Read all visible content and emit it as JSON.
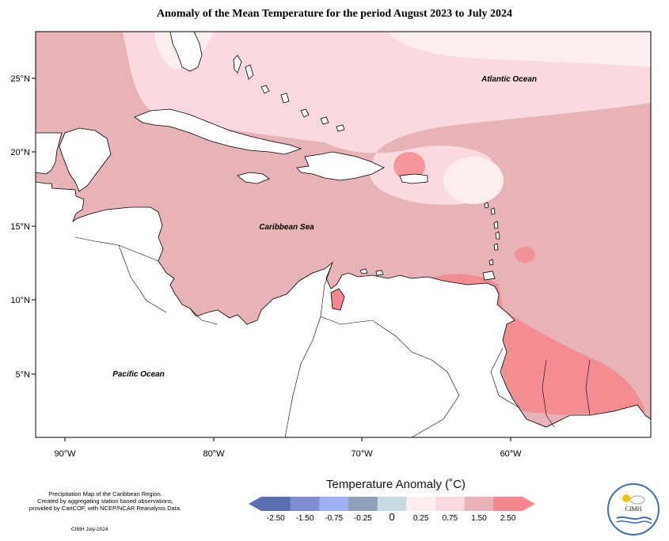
{
  "title": "Anomaly of the Mean Temperature for the period August 2023 to July 2024",
  "ocean_labels": {
    "atlantic": "Atlantic Ocean",
    "caribbean": "Caribbean Sea",
    "pacific": "Pacific Ocean"
  },
  "lat_ticks": [
    "25°N",
    "20°N",
    "15°N",
    "10°N",
    "5°N"
  ],
  "lon_ticks": [
    "90°W",
    "80°W",
    "70°W",
    "60°W"
  ],
  "legend": {
    "title": "Temperature Anomaly (˚C)",
    "tick_labels": [
      "-2.50",
      "-1.50",
      "-0.75",
      "-0.25",
      "0",
      "0.25",
      "0.75",
      "1.50",
      "2.50"
    ],
    "colors": [
      "#5a6fb0",
      "#7f8ed0",
      "#9fb0f0",
      "#8da0b8",
      "#c9dbe2",
      "#fdeeee",
      "#fadade",
      "#e7b3b6",
      "#f5888e"
    ]
  },
  "anomaly_colors": {
    "light": "#fdeeee",
    "pale": "#fadade",
    "medium": "#e7b3b6",
    "strong": "#f5888e"
  },
  "credit": {
    "line1": "Precipitation Map of the Caribbean Region.",
    "line2": "Created by aggregating station based observations,",
    "line3": "provided by CariCOF, with NCEP/NCAR Reanalysis Data.",
    "date": "CIMH July-2024"
  },
  "logo": {
    "text": "CIMH"
  }
}
